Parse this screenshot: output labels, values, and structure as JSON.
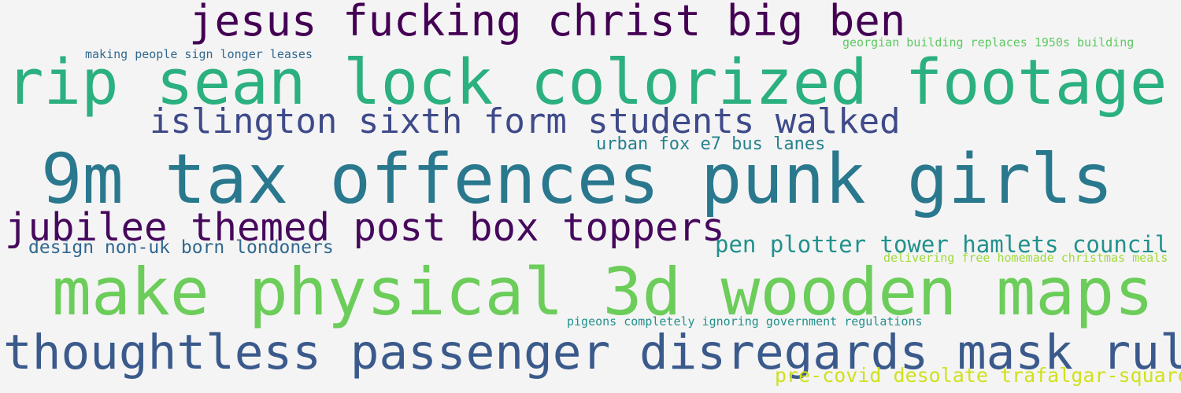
{
  "phrases": [
    {
      "text": "jesus fucking christ big ben",
      "color": "#440154"
    },
    {
      "text": "making people sign longer leases",
      "color": "#31688e"
    },
    {
      "text": "georgian building replaces 1950s building",
      "color": "#5ec962"
    },
    {
      "text": "rip sean lock colorized footage",
      "color": "#2bb07f"
    },
    {
      "text": "islington sixth form students walked",
      "color": "#3e4a89"
    },
    {
      "text": "urban fox e7 bus lanes",
      "color": "#26828e"
    },
    {
      "text": "9m tax offences punk girls",
      "color": "#2a788e"
    },
    {
      "text": "jubilee themed post box toppers",
      "color": "#46085c"
    },
    {
      "text": "design non-uk born londoners",
      "color": "#31688e"
    },
    {
      "text": "pen plotter tower hamlets council",
      "color": "#21918c"
    },
    {
      "text": "delivering free homemade christmas meals",
      "color": "#a0da39"
    },
    {
      "text": "make physical 3d wooden maps",
      "color": "#6ccd5a"
    },
    {
      "text": "pigeons completely ignoring government regulations",
      "color": "#21918c"
    },
    {
      "text": "thoughtless passenger disregards mask rules",
      "color": "#3b5a8c"
    },
    {
      "text": "pre-covid desolate trafalgar-square",
      "color": "#d0e11c"
    }
  ]
}
